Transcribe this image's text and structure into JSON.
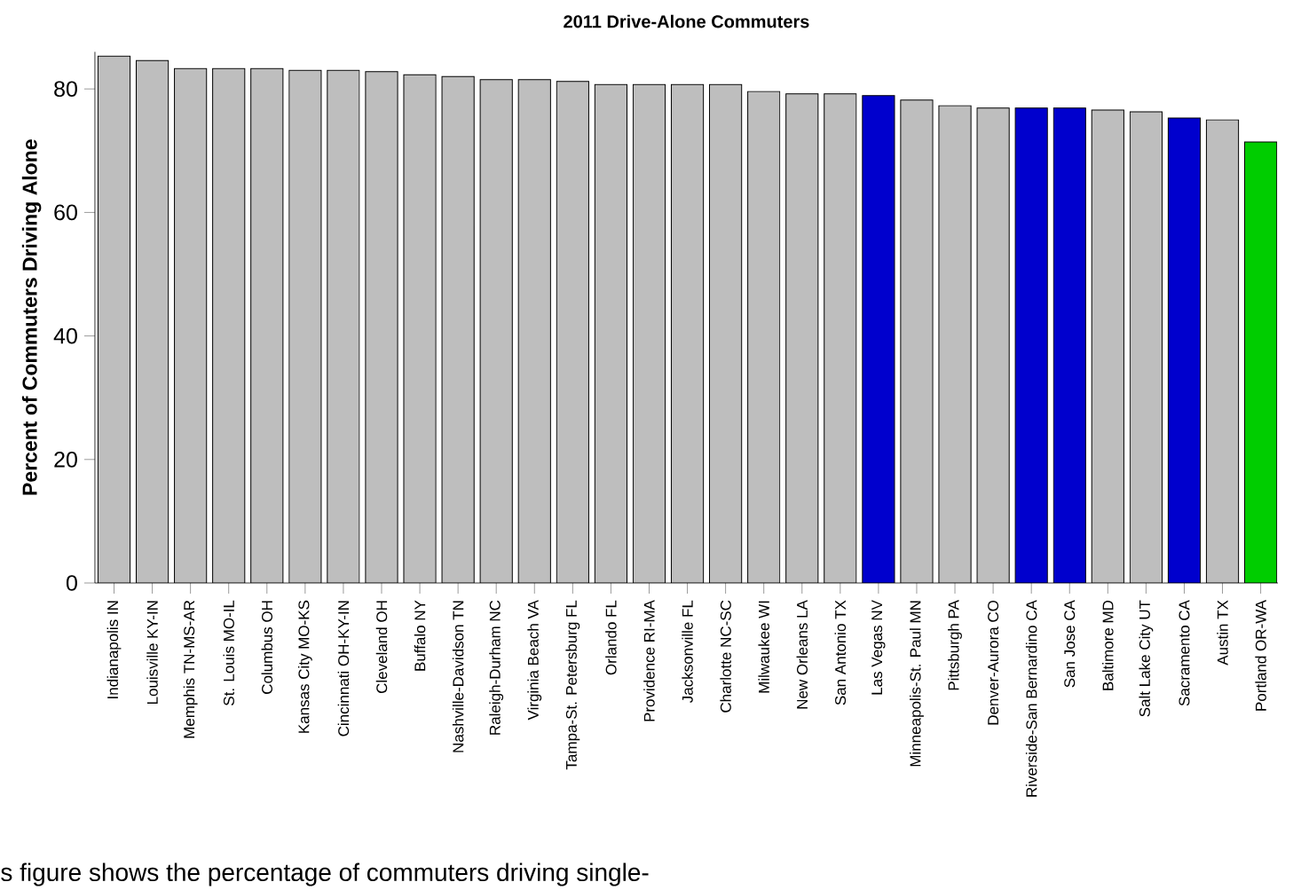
{
  "chart_data": {
    "type": "bar",
    "title": "2011 Drive-Alone Commuters",
    "ylabel": "Percent of Commuters Driving Alone",
    "categories": [
      "Indianapolis IN",
      "Louisville KY-IN",
      "Memphis TN-MS-AR",
      "St. Louis MO-IL",
      "Columbus OH",
      "Kansas City MO-KS",
      "Cincinnati OH-KY-IN",
      "Cleveland OH",
      "Buffalo NY",
      "Nashville-Davidson TN",
      "Raleigh-Durham NC",
      "Virginia Beach VA",
      "Tampa-St. Petersburg FL",
      "Orlando FL",
      "Providence RI-MA",
      "Jacksonville FL",
      "Charlotte NC-SC",
      "Milwaukee WI",
      "New Orleans LA",
      "San Antonio TX",
      "Las Vegas NV",
      "Minneapolis-St. Paul MN",
      "Pittsburgh PA",
      "Denver-Aurora CO",
      "Riverside-San Bernardino CA",
      "San Jose CA",
      "Baltimore MD",
      "Salt Lake City UT",
      "Sacramento CA",
      "Austin TX",
      "Portland OR-WA"
    ],
    "values": [
      85.3,
      84.6,
      83.3,
      83.3,
      83.3,
      83.0,
      83.0,
      82.8,
      82.3,
      82.0,
      81.5,
      81.5,
      81.2,
      80.7,
      80.7,
      80.7,
      80.7,
      79.6,
      79.2,
      79.2,
      78.9,
      78.2,
      77.3,
      76.9,
      76.9,
      76.9,
      76.6,
      76.3,
      75.3,
      75.0,
      71.4
    ],
    "colors": [
      "#bebebe",
      "#bebebe",
      "#bebebe",
      "#bebebe",
      "#bebebe",
      "#bebebe",
      "#bebebe",
      "#bebebe",
      "#bebebe",
      "#bebebe",
      "#bebebe",
      "#bebebe",
      "#bebebe",
      "#bebebe",
      "#bebebe",
      "#bebebe",
      "#bebebe",
      "#bebebe",
      "#bebebe",
      "#bebebe",
      "#0000cd",
      "#bebebe",
      "#bebebe",
      "#bebebe",
      "#0000cd",
      "#0000cd",
      "#bebebe",
      "#bebebe",
      "#0000cd",
      "#bebebe",
      "#00cd00"
    ],
    "ylim": [
      0,
      86
    ],
    "yticks": [
      0,
      20,
      40,
      60,
      80
    ],
    "annotations": [
      "s figure shows the percentage of commuters driving single-"
    ]
  }
}
